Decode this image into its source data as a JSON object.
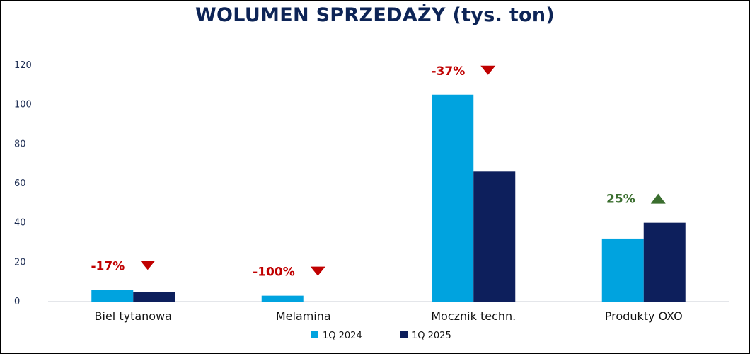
{
  "chart_data": {
    "type": "bar",
    "title": "WOLUMEN SPRZEDAŻY (tys. ton)",
    "categories": [
      "Biel tytanowa",
      "Melamina",
      "Mocznik techn.",
      "Produkty OXO"
    ],
    "series": [
      {
        "name": "1Q 2024",
        "values": [
          6,
          3,
          105,
          32
        ],
        "color": "#00a3df"
      },
      {
        "name": "1Q 2025",
        "values": [
          5,
          0,
          66,
          40
        ],
        "color": "#0d1f5c"
      }
    ],
    "y_ticks": [
      "0",
      "20",
      "40",
      "60",
      "80",
      "100",
      "120"
    ],
    "ylim": [
      0,
      120
    ],
    "grid": false,
    "legend_position": "bottom",
    "annotations": [
      {
        "text": "-17%",
        "direction": "down",
        "color": "#c00000"
      },
      {
        "text": "-100%",
        "direction": "down",
        "color": "#c00000"
      },
      {
        "text": "-37%",
        "direction": "down",
        "color": "#c00000"
      },
      {
        "text": "25%",
        "direction": "up",
        "color": "#3a6e2e"
      }
    ]
  }
}
